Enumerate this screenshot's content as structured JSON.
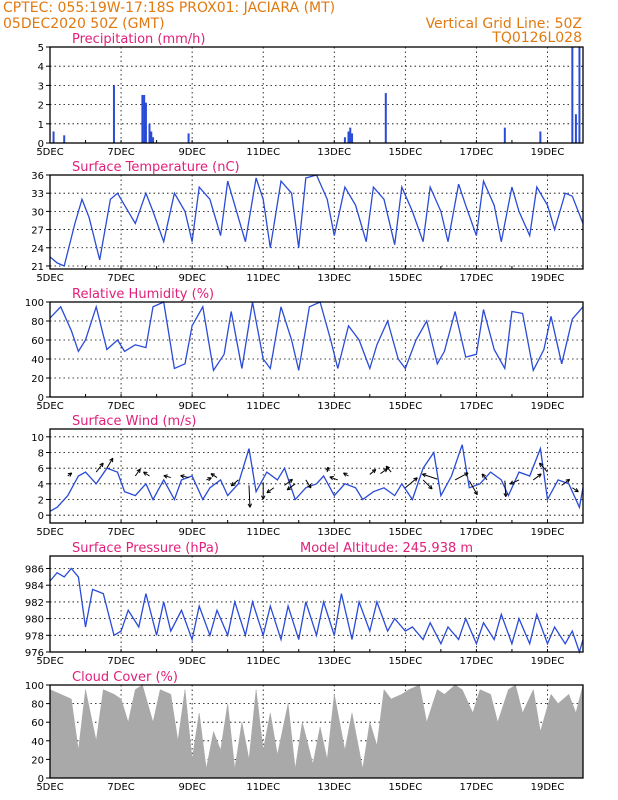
{
  "header": {
    "line1_left": "CPTEC:   055:19W-17:18S   PROX01: JACIARA (MT)",
    "line2_left": "05DEC2020 50Z (GMT)",
    "line2_right": "Vertical Grid Line: 50Z",
    "line3_right": "TQ0126L028"
  },
  "colors": {
    "header_text": "#e07a10",
    "title_text": "#e0207a",
    "series": "#2a4bd7",
    "cloud": "#a9a9a9",
    "grid": "#000000"
  },
  "x_axis": {
    "labels": [
      "5DEC",
      "7DEC",
      "9DEC",
      "11DEC",
      "13DEC",
      "15DEC",
      "17DEC",
      "19DEC"
    ],
    "start_day": 5,
    "end_day": 20
  },
  "chart_data": [
    {
      "type": "bar",
      "title": "Precipitation (mm/h)",
      "ylim": [
        0,
        5
      ],
      "yticks": [
        "0",
        "1",
        "2",
        "3",
        "4",
        "5"
      ],
      "x": [
        5.1,
        5.4,
        6.8,
        7.6,
        7.65,
        7.7,
        7.8,
        7.85,
        7.9,
        8.9,
        13.3,
        13.4,
        13.45,
        13.5,
        14.45,
        17.8,
        18.8,
        19.7,
        19.8,
        19.9
      ],
      "values": [
        0.6,
        0.4,
        3.0,
        2.5,
        2.5,
        2.1,
        1.0,
        0.6,
        0.3,
        0.5,
        0.3,
        0.6,
        0.8,
        0.5,
        2.6,
        0.8,
        0.6,
        5.0,
        1.5,
        5.0
      ]
    },
    {
      "type": "line",
      "title": "Surface Temperature (nC)",
      "ylim": [
        20.5,
        36
      ],
      "yticks": [
        "21",
        "24",
        "27",
        "30",
        "33",
        "36"
      ],
      "x": [
        5.0,
        5.2,
        5.4,
        5.7,
        5.9,
        6.1,
        6.4,
        6.7,
        6.9,
        7.1,
        7.4,
        7.7,
        7.9,
        8.2,
        8.5,
        8.8,
        9.0,
        9.2,
        9.5,
        9.8,
        10.0,
        10.2,
        10.5,
        10.8,
        11.0,
        11.2,
        11.5,
        11.8,
        12.0,
        12.2,
        12.5,
        12.8,
        13.0,
        13.3,
        13.6,
        13.9,
        14.1,
        14.4,
        14.7,
        14.9,
        15.2,
        15.5,
        15.7,
        16.0,
        16.2,
        16.5,
        16.7,
        17.0,
        17.2,
        17.5,
        17.7,
        18.0,
        18.2,
        18.5,
        18.7,
        19.0,
        19.2,
        19.5,
        19.7,
        20.0
      ],
      "values": [
        22.5,
        21.5,
        21.0,
        28.0,
        32.0,
        29.0,
        22.0,
        32.0,
        33.0,
        31.0,
        28.0,
        33.0,
        30.0,
        25.0,
        33.0,
        30.0,
        25.0,
        34.0,
        32.0,
        26.0,
        35.0,
        31.0,
        25.0,
        35.5,
        32.0,
        24.0,
        35.0,
        33.0,
        24.0,
        35.5,
        36.0,
        32.0,
        26.0,
        34.0,
        31.0,
        25.0,
        34.0,
        32.0,
        24.5,
        34.0,
        30.0,
        25.0,
        34.0,
        30.0,
        25.0,
        34.5,
        31.0,
        26.0,
        35.0,
        31.0,
        25.0,
        34.0,
        30.0,
        26.0,
        34.0,
        31.0,
        27.0,
        33.0,
        32.5,
        28.0
      ]
    },
    {
      "type": "line",
      "title": "Relative Humidity (%)",
      "ylim": [
        0,
        100
      ],
      "yticks": [
        "0",
        "20",
        "40",
        "60",
        "80",
        "100"
      ],
      "x": [
        5.0,
        5.3,
        5.6,
        5.8,
        6.0,
        6.3,
        6.6,
        6.9,
        7.1,
        7.4,
        7.7,
        7.9,
        8.2,
        8.5,
        8.8,
        9.0,
        9.3,
        9.6,
        9.9,
        10.1,
        10.4,
        10.7,
        11.0,
        11.2,
        11.5,
        11.8,
        12.0,
        12.3,
        12.6,
        12.9,
        13.1,
        13.4,
        13.7,
        14.0,
        14.2,
        14.5,
        14.8,
        15.0,
        15.3,
        15.6,
        15.9,
        16.1,
        16.4,
        16.7,
        17.0,
        17.2,
        17.5,
        17.8,
        18.0,
        18.3,
        18.6,
        18.9,
        19.1,
        19.4,
        19.7,
        20.0
      ],
      "values": [
        83,
        95,
        70,
        48,
        60,
        95,
        50,
        60,
        48,
        55,
        52,
        95,
        100,
        30,
        35,
        75,
        95,
        28,
        45,
        90,
        30,
        100,
        40,
        30,
        95,
        60,
        28,
        95,
        100,
        60,
        30,
        75,
        60,
        30,
        55,
        80,
        40,
        30,
        60,
        80,
        35,
        48,
        90,
        42,
        45,
        92,
        50,
        30,
        90,
        88,
        28,
        50,
        85,
        35,
        82,
        95
      ]
    },
    {
      "type": "line",
      "title": "Surface Wind (m/s)",
      "ylim": [
        -1,
        11
      ],
      "yticks": [
        "0",
        "2",
        "4",
        "6",
        "8",
        "10"
      ],
      "x": [
        5.0,
        5.2,
        5.5,
        5.8,
        6.0,
        6.3,
        6.6,
        6.9,
        7.1,
        7.4,
        7.7,
        7.9,
        8.2,
        8.5,
        8.7,
        9.0,
        9.3,
        9.5,
        9.8,
        10.0,
        10.3,
        10.6,
        10.8,
        11.1,
        11.4,
        11.6,
        11.9,
        12.2,
        12.5,
        12.7,
        13.0,
        13.3,
        13.6,
        13.8,
        14.1,
        14.4,
        14.7,
        14.9,
        15.2,
        15.5,
        15.8,
        16.0,
        16.3,
        16.6,
        16.8,
        17.1,
        17.4,
        17.7,
        17.9,
        18.2,
        18.5,
        18.8,
        19.0,
        19.3,
        19.6,
        19.9,
        20.0
      ],
      "values": [
        0.5,
        1.0,
        2.5,
        5.0,
        5.5,
        4.0,
        6.0,
        5.5,
        3.0,
        2.5,
        4.0,
        2.0,
        4.5,
        2.0,
        4.5,
        5.0,
        2.0,
        3.5,
        4.5,
        2.5,
        4.0,
        8.5,
        3.0,
        5.5,
        4.5,
        6.0,
        2.0,
        3.5,
        4.0,
        5.0,
        2.5,
        4.0,
        3.5,
        2.0,
        3.0,
        3.5,
        2.5,
        4.0,
        2.0,
        6.0,
        8.0,
        2.5,
        5.0,
        9.0,
        3.5,
        4.0,
        5.5,
        4.5,
        2.5,
        5.5,
        5.0,
        8.5,
        2.0,
        4.5,
        4.0,
        1.0,
        3.5
      ],
      "arrows": {
        "x": [
          5.5,
          6.3,
          6.6,
          7.4,
          7.8,
          8.4,
          8.9,
          9.4,
          9.7,
          10.3,
          10.6,
          11.0,
          11.3,
          11.6,
          11.9,
          12.2,
          12.8,
          13.1,
          13.4,
          14.0,
          14.3,
          14.6,
          15.0,
          15.5,
          15.9,
          16.4,
          16.8,
          17.3,
          17.8,
          18.2,
          18.6,
          19.0,
          19.4,
          19.7
        ],
        "y": [
          5.0,
          5.5,
          6.0,
          5.0,
          5.0,
          4.8,
          4.8,
          4.5,
          4.8,
          4.5,
          3.8,
          4.2,
          3.5,
          3.8,
          4.0,
          4.5,
          5.5,
          4.5,
          5.0,
          5.2,
          5.3,
          5.5,
          3.5,
          4.5,
          4.6,
          4.5,
          4.4,
          4.5,
          4.4,
          4.5,
          4.5,
          5.5,
          3.8,
          3.5
        ],
        "u": [
          0.4,
          0.7,
          0.6,
          0.5,
          -0.6,
          -0.7,
          -0.8,
          0.5,
          -0.6,
          -0.7,
          0.1,
          0.0,
          -0.7,
          0.8,
          -0.8,
          0.5,
          0.1,
          -0.8,
          -0.5,
          0.6,
          0.7,
          -0.5,
          1.2,
          0.9,
          -1.5,
          1.3,
          0.8,
          -0.5,
          0.1,
          -0.9,
          0.8,
          -0.8,
          0.8,
          0.6
        ],
        "v": [
          0.3,
          0.9,
          1.0,
          0.7,
          0.4,
          0.2,
          0.2,
          0.2,
          0.4,
          -0.6,
          -2.2,
          -1.7,
          -0.5,
          0.6,
          -0.6,
          -0.8,
          0.5,
          0.3,
          0.3,
          0.5,
          0.5,
          0.6,
          1.0,
          -0.9,
          0.5,
          0.7,
          -1.4,
          0.6,
          -1.6,
          -0.4,
          0.6,
          0.9,
          0.6,
          -0.4
        ]
      }
    },
    {
      "type": "line",
      "title": "Surface Pressure (hPa)",
      "subtitle": "Model Altitude: 245.938 m",
      "ylim": [
        976,
        987.5
      ],
      "yticks": [
        "976",
        "978",
        "980",
        "982",
        "984",
        "986"
      ],
      "x": [
        5.0,
        5.2,
        5.4,
        5.6,
        5.8,
        6.0,
        6.2,
        6.5,
        6.8,
        7.0,
        7.2,
        7.5,
        7.7,
        8.0,
        8.2,
        8.4,
        8.7,
        9.0,
        9.2,
        9.5,
        9.7,
        10.0,
        10.2,
        10.5,
        10.7,
        11.0,
        11.2,
        11.5,
        11.7,
        12.0,
        12.2,
        12.5,
        12.7,
        13.0,
        13.2,
        13.5,
        13.7,
        14.0,
        14.2,
        14.5,
        14.7,
        15.0,
        15.2,
        15.5,
        15.7,
        16.0,
        16.2,
        16.5,
        16.7,
        17.0,
        17.2,
        17.5,
        17.7,
        18.0,
        18.2,
        18.5,
        18.7,
        19.0,
        19.2,
        19.5,
        19.7,
        19.9,
        20.0
      ],
      "values": [
        984.5,
        985.5,
        985.0,
        986.0,
        985.0,
        979.0,
        983.5,
        983.0,
        978.0,
        978.5,
        981.0,
        979.0,
        983.0,
        978.0,
        982.0,
        978.5,
        981.0,
        977.5,
        981.5,
        978.0,
        981.0,
        978.0,
        982.0,
        978.0,
        982.0,
        978.0,
        981.5,
        977.5,
        981.5,
        977.5,
        982.0,
        978.0,
        982.0,
        978.0,
        983.0,
        977.5,
        982.0,
        978.5,
        982.0,
        978.5,
        980.0,
        978.5,
        979.0,
        977.5,
        979.5,
        977.0,
        979.0,
        977.5,
        980.0,
        977.0,
        979.5,
        977.5,
        980.5,
        977.0,
        980.0,
        977.0,
        980.5,
        977.0,
        979.0,
        977.0,
        978.5,
        976.0,
        977.5
      ]
    },
    {
      "type": "area",
      "title": "Cloud Cover (%)",
      "ylim": [
        0,
        100
      ],
      "yticks": [
        "0",
        "20",
        "40",
        "60",
        "80",
        "100"
      ],
      "x": [
        5.0,
        5.3,
        5.6,
        5.8,
        6.0,
        6.3,
        6.5,
        6.8,
        7.0,
        7.2,
        7.4,
        7.6,
        7.9,
        8.1,
        8.4,
        8.6,
        8.8,
        9.0,
        9.2,
        9.4,
        9.6,
        9.8,
        10.0,
        10.2,
        10.4,
        10.6,
        10.8,
        11.0,
        11.2,
        11.4,
        11.7,
        11.9,
        12.1,
        12.4,
        12.6,
        12.8,
        13.0,
        13.3,
        13.5,
        13.8,
        14.0,
        14.2,
        14.4,
        14.6,
        14.9,
        15.1,
        15.4,
        15.6,
        15.9,
        16.1,
        16.4,
        16.6,
        16.9,
        17.1,
        17.4,
        17.6,
        17.9,
        18.1,
        18.3,
        18.6,
        18.8,
        19.1,
        19.3,
        19.6,
        19.8,
        20.0
      ],
      "values": [
        95,
        90,
        85,
        30,
        95,
        40,
        95,
        90,
        85,
        60,
        95,
        100,
        60,
        95,
        90,
        40,
        95,
        20,
        70,
        10,
        50,
        30,
        80,
        10,
        60,
        20,
        95,
        30,
        70,
        25,
        80,
        10,
        60,
        15,
        55,
        20,
        90,
        30,
        70,
        10,
        60,
        35,
        95,
        85,
        90,
        95,
        100,
        60,
        95,
        90,
        100,
        95,
        70,
        95,
        90,
        60,
        95,
        100,
        70,
        95,
        50,
        90,
        80,
        90,
        70,
        100
      ]
    }
  ]
}
